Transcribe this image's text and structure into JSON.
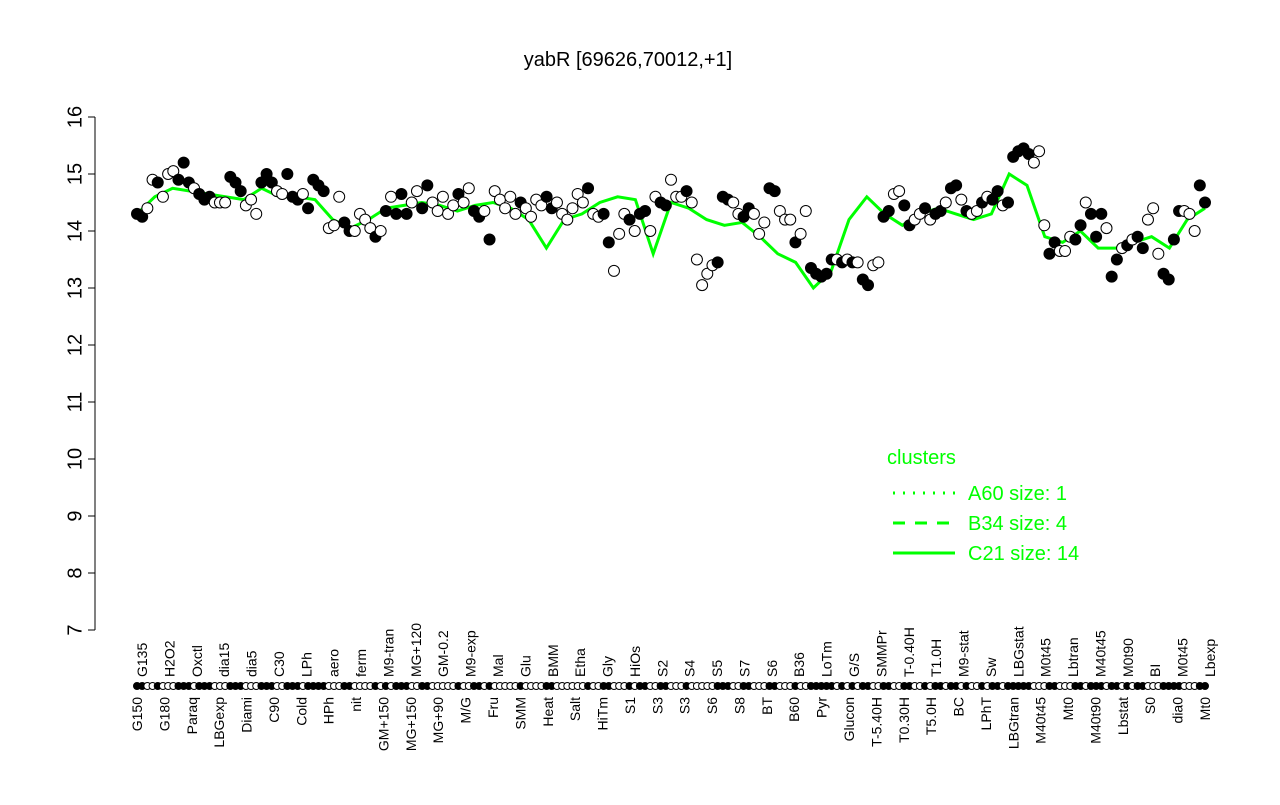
{
  "chart_data": {
    "type": "scatter",
    "title": "yabR [69626,70012,+1]",
    "xlabel": "",
    "ylabel": "",
    "ylim": [
      7,
      16
    ],
    "yticks": [
      7,
      8,
      9,
      10,
      11,
      12,
      13,
      14,
      15,
      16
    ],
    "colors": {
      "points_stroke": "#000000",
      "line": "#00ff00"
    },
    "points": [
      [
        14.3,
        1
      ],
      [
        14.25,
        1
      ],
      [
        14.4,
        0
      ],
      [
        14.9,
        0
      ],
      [
        14.85,
        1
      ],
      [
        14.6,
        0
      ],
      [
        15.0,
        0
      ],
      [
        15.05,
        0
      ],
      [
        14.9,
        1
      ],
      [
        15.2,
        1
      ],
      [
        14.85,
        1
      ],
      [
        14.75,
        0
      ],
      [
        14.65,
        1
      ],
      [
        14.55,
        1
      ],
      [
        14.6,
        1
      ],
      [
        14.5,
        0
      ],
      [
        14.5,
        0
      ],
      [
        14.5,
        0
      ],
      [
        14.95,
        1
      ],
      [
        14.85,
        1
      ],
      [
        14.7,
        1
      ],
      [
        14.45,
        0
      ],
      [
        14.55,
        0
      ],
      [
        14.3,
        0
      ],
      [
        14.85,
        1
      ],
      [
        15.0,
        1
      ],
      [
        14.85,
        1
      ],
      [
        14.7,
        0
      ],
      [
        14.65,
        0
      ],
      [
        15.0,
        1
      ],
      [
        14.6,
        1
      ],
      [
        14.55,
        1
      ],
      [
        14.65,
        0
      ],
      [
        14.4,
        1
      ],
      [
        14.9,
        1
      ],
      [
        14.8,
        1
      ],
      [
        14.7,
        1
      ],
      [
        14.05,
        0
      ],
      [
        14.1,
        0
      ],
      [
        14.6,
        0
      ],
      [
        14.15,
        1
      ],
      [
        14.0,
        1
      ],
      [
        14.0,
        0
      ],
      [
        14.3,
        0
      ],
      [
        14.2,
        0
      ],
      [
        14.05,
        0
      ],
      [
        13.9,
        1
      ],
      [
        14.0,
        0
      ],
      [
        14.35,
        1
      ],
      [
        14.6,
        0
      ],
      [
        14.3,
        1
      ],
      [
        14.65,
        1
      ],
      [
        14.3,
        1
      ],
      [
        14.5,
        0
      ],
      [
        14.7,
        0
      ],
      [
        14.4,
        1
      ],
      [
        14.8,
        1
      ],
      [
        14.5,
        0
      ],
      [
        14.35,
        0
      ],
      [
        14.6,
        0
      ],
      [
        14.3,
        0
      ],
      [
        14.45,
        0
      ],
      [
        14.65,
        1
      ],
      [
        14.5,
        0
      ],
      [
        14.75,
        0
      ],
      [
        14.35,
        1
      ],
      [
        14.25,
        1
      ],
      [
        14.35,
        0
      ],
      [
        13.85,
        1
      ],
      [
        14.7,
        0
      ],
      [
        14.55,
        0
      ],
      [
        14.4,
        0
      ],
      [
        14.6,
        0
      ],
      [
        14.3,
        0
      ],
      [
        14.5,
        1
      ],
      [
        14.4,
        0
      ],
      [
        14.25,
        0
      ],
      [
        14.55,
        0
      ],
      [
        14.45,
        0
      ],
      [
        14.6,
        1
      ],
      [
        14.4,
        1
      ],
      [
        14.5,
        0
      ],
      [
        14.3,
        0
      ],
      [
        14.2,
        0
      ],
      [
        14.4,
        0
      ],
      [
        14.65,
        0
      ],
      [
        14.5,
        0
      ],
      [
        14.75,
        1
      ],
      [
        14.3,
        0
      ],
      [
        14.25,
        0
      ],
      [
        14.3,
        1
      ],
      [
        13.8,
        1
      ],
      [
        13.3,
        0
      ],
      [
        13.95,
        0
      ],
      [
        14.3,
        0
      ],
      [
        14.2,
        1
      ],
      [
        14.0,
        0
      ],
      [
        14.3,
        1
      ],
      [
        14.35,
        1
      ],
      [
        14.0,
        0
      ],
      [
        14.6,
        0
      ],
      [
        14.5,
        1
      ],
      [
        14.45,
        1
      ],
      [
        14.9,
        0
      ],
      [
        14.6,
        0
      ],
      [
        14.6,
        0
      ],
      [
        14.7,
        1
      ],
      [
        14.5,
        0
      ],
      [
        13.5,
        0
      ],
      [
        13.05,
        0
      ],
      [
        13.25,
        0
      ],
      [
        13.4,
        0
      ],
      [
        13.45,
        1
      ],
      [
        14.6,
        1
      ],
      [
        14.55,
        1
      ],
      [
        14.5,
        0
      ],
      [
        14.3,
        0
      ],
      [
        14.25,
        1
      ],
      [
        14.4,
        1
      ],
      [
        14.3,
        0
      ],
      [
        13.95,
        0
      ],
      [
        14.15,
        0
      ],
      [
        14.75,
        1
      ],
      [
        14.7,
        1
      ],
      [
        14.35,
        0
      ],
      [
        14.2,
        0
      ],
      [
        14.2,
        0
      ],
      [
        13.8,
        1
      ],
      [
        13.95,
        0
      ],
      [
        14.35,
        0
      ],
      [
        13.35,
        1
      ],
      [
        13.25,
        1
      ],
      [
        13.2,
        1
      ],
      [
        13.25,
        1
      ],
      [
        13.5,
        1
      ],
      [
        13.5,
        0
      ],
      [
        13.45,
        1
      ],
      [
        13.5,
        0
      ],
      [
        13.45,
        1
      ],
      [
        13.45,
        0
      ],
      [
        13.15,
        1
      ],
      [
        13.05,
        1
      ],
      [
        13.4,
        0
      ],
      [
        13.45,
        0
      ],
      [
        14.25,
        1
      ],
      [
        14.35,
        1
      ],
      [
        14.65,
        0
      ],
      [
        14.7,
        0
      ],
      [
        14.45,
        1
      ],
      [
        14.1,
        1
      ],
      [
        14.2,
        0
      ],
      [
        14.3,
        0
      ],
      [
        14.4,
        1
      ],
      [
        14.2,
        0
      ],
      [
        14.3,
        1
      ],
      [
        14.35,
        1
      ],
      [
        14.5,
        0
      ],
      [
        14.75,
        1
      ],
      [
        14.8,
        1
      ],
      [
        14.55,
        0
      ],
      [
        14.35,
        1
      ],
      [
        14.3,
        0
      ],
      [
        14.35,
        0
      ],
      [
        14.5,
        1
      ],
      [
        14.6,
        0
      ],
      [
        14.55,
        1
      ],
      [
        14.7,
        1
      ],
      [
        14.45,
        0
      ],
      [
        14.5,
        1
      ],
      [
        15.3,
        1
      ],
      [
        15.4,
        1
      ],
      [
        15.45,
        1
      ],
      [
        15.35,
        1
      ],
      [
        15.2,
        0
      ],
      [
        15.4,
        0
      ],
      [
        14.1,
        0
      ],
      [
        13.6,
        1
      ],
      [
        13.8,
        1
      ],
      [
        13.65,
        0
      ],
      [
        13.65,
        0
      ],
      [
        13.9,
        0
      ],
      [
        13.85,
        1
      ],
      [
        14.1,
        1
      ],
      [
        14.5,
        0
      ],
      [
        14.3,
        1
      ],
      [
        13.9,
        1
      ],
      [
        14.3,
        1
      ],
      [
        14.05,
        0
      ],
      [
        13.2,
        1
      ],
      [
        13.5,
        1
      ],
      [
        13.7,
        0
      ],
      [
        13.75,
        1
      ],
      [
        13.85,
        0
      ],
      [
        13.9,
        1
      ],
      [
        13.7,
        1
      ],
      [
        14.2,
        0
      ],
      [
        14.4,
        0
      ],
      [
        13.6,
        0
      ],
      [
        13.25,
        1
      ],
      [
        13.15,
        1
      ],
      [
        13.85,
        1
      ],
      [
        14.35,
        1
      ],
      [
        14.35,
        0
      ],
      [
        14.3,
        0
      ],
      [
        14.0,
        0
      ],
      [
        14.8,
        1
      ],
      [
        14.5,
        1
      ]
    ],
    "cluster_line": [
      14.3,
      14.6,
      14.75,
      14.7,
      14.65,
      14.6,
      14.55,
      14.75,
      14.6,
      14.6,
      14.55,
      14.2,
      14.05,
      14.2,
      14.4,
      14.45,
      14.5,
      14.45,
      14.35,
      14.45,
      14.5,
      14.4,
      14.2,
      13.7,
      14.2,
      14.3,
      14.5,
      14.6,
      14.55,
      13.6,
      14.5,
      14.4,
      14.2,
      14.1,
      14.15,
      13.9,
      13.6,
      13.45,
      13.0,
      13.3,
      14.2,
      14.6,
      14.3,
      14.1,
      14.3,
      14.4,
      14.3,
      14.2,
      14.3,
      15.0,
      14.8,
      13.9,
      13.8,
      14.0,
      13.7,
      13.7,
      13.8,
      13.9,
      13.7,
      14.2,
      14.4
    ],
    "xticks_top": [
      "G135",
      "H2O2",
      "Oxctl",
      "dia15",
      "dia5",
      "C30",
      "LPh",
      "aero",
      "ferm",
      "M9-tran",
      "MG+120",
      "GM-0.2",
      "M9-exp",
      "Mal",
      "Glu",
      "BMM",
      "Etha",
      "Gly",
      "HiOs",
      "S2",
      "S4",
      "S5",
      "S7",
      "S6",
      "B36",
      "LoTm",
      "G/S",
      "SMMPr",
      "T-0.40H",
      "T1.0H",
      "M9-stat",
      "Sw",
      "LBGstat",
      "M0t45",
      "Lbtran",
      "M40t45",
      "M0t90",
      "BI",
      "M0t45",
      "Lbexp"
    ],
    "xticks_bottom": [
      "G150",
      "G180",
      "Paraq",
      "LBGexp",
      "Diami",
      "C90",
      "Cold",
      "HPh",
      "nit",
      "GM+150",
      "MG+150",
      "MG+90",
      "M/G",
      "Fru",
      "SMM",
      "Heat",
      "Salt",
      "HiTm",
      "S1",
      "S3",
      "S3",
      "S6",
      "S8",
      "BT",
      "B60",
      "Pyr",
      "Glucon",
      "T-5.40H",
      "T0.30H",
      "T5.0H",
      "BC",
      "LPhT",
      "LBGtran",
      "M40t45",
      "Mt0",
      "M40t90",
      "Lbstat",
      "S0",
      "dia0",
      "Mt0"
    ],
    "legend": {
      "title": "clusters",
      "placement": "right",
      "entries": [
        {
          "label": "A60 size: 1",
          "style": "dotted"
        },
        {
          "label": "B34 size: 4",
          "style": "dashed"
        },
        {
          "label": "C21 size: 14",
          "style": "solid"
        }
      ]
    }
  }
}
